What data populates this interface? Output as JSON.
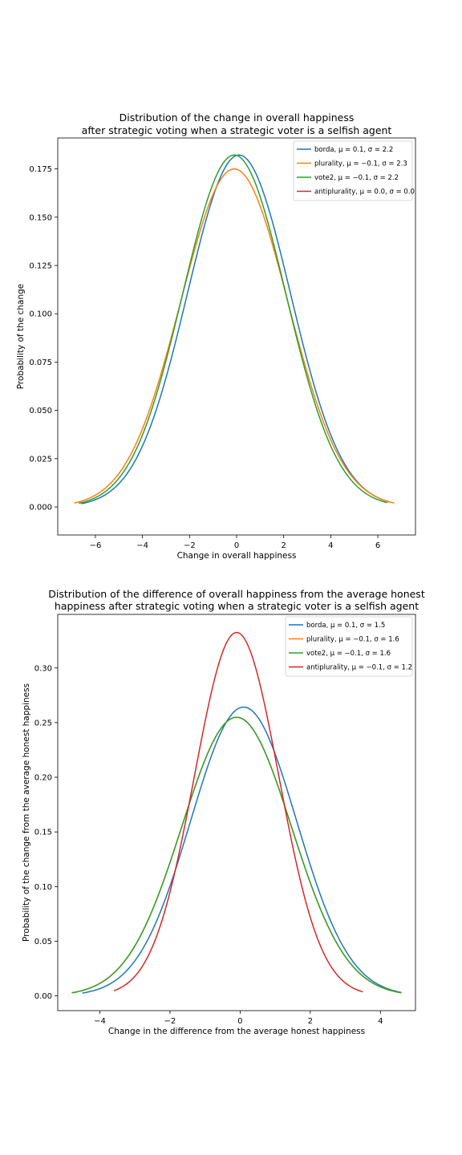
{
  "chart_data": [
    {
      "type": "line",
      "title": "Distribution of the change in overall happiness",
      "subtitle": "after strategic voting when a strategic voter is a selfish agent",
      "xlabel": "Change in overall happiness",
      "ylabel": "Probability of the change",
      "xlim": [
        -7.6,
        7.6
      ],
      "ylim": [
        -0.0145,
        0.191
      ],
      "xticks": [
        -6,
        -4,
        -2,
        0,
        2,
        4,
        6
      ],
      "xtick_labels": [
        "−6",
        "−4",
        "−2",
        "0",
        "2",
        "4",
        "6"
      ],
      "yticks": [
        0,
        0.025,
        0.05,
        0.075,
        0.1,
        0.125,
        0.15,
        0.175
      ],
      "ytick_labels": [
        "0.000",
        "0.025",
        "0.050",
        "0.075",
        "0.100",
        "0.125",
        "0.150",
        "0.175"
      ],
      "grid": false,
      "legend_position": "top-right",
      "series": [
        {
          "name": "borda, μ = 0.1, σ = 2.2",
          "color": "#1f77b4",
          "mu": 0.1,
          "sigma": 2.19,
          "x_range": [
            -6.6,
            6.5
          ]
        },
        {
          "name": "plurality, μ = −0.1, σ = 2.3",
          "color": "#ff7f0e",
          "mu": -0.1,
          "sigma": 2.28,
          "x_range": [
            -6.9,
            6.7
          ]
        },
        {
          "name": "vote2, μ = −0.1, σ = 2.2",
          "color": "#2ca02c",
          "mu": -0.1,
          "sigma": 2.19,
          "x_range": [
            -6.7,
            6.4
          ]
        },
        {
          "name": "antiplurality, μ = 0.0, σ = 0.0",
          "color": "#d62728",
          "mu": 0.0,
          "sigma": 0.0,
          "x_range": null
        }
      ]
    },
    {
      "type": "line",
      "title": "Distribution of the difference of overall happiness from the average honest",
      "subtitle": "happiness after strategic voting when a strategic voter is a selfish agent",
      "xlabel": "Change in the difference from the average honest happiness",
      "ylabel": "Probability of the change from the average honest happiness",
      "xlim": [
        -5.2,
        5.0
      ],
      "ylim": [
        -0.0135,
        0.349
      ],
      "xticks": [
        -4,
        -2,
        0,
        2,
        4
      ],
      "xtick_labels": [
        "−4",
        "−2",
        "0",
        "2",
        "4"
      ],
      "yticks": [
        0,
        0.05,
        0.1,
        0.15,
        0.2,
        0.25,
        0.3
      ],
      "ytick_labels": [
        "0.00",
        "0.05",
        "0.10",
        "0.15",
        "0.20",
        "0.25",
        "0.30"
      ],
      "grid": false,
      "legend_position": "top-right",
      "series": [
        {
          "name": "borda, μ = 0.1, σ = 1.5",
          "color": "#1f77b4",
          "mu": 0.1,
          "sigma": 1.51,
          "x_range": [
            -4.5,
            4.6
          ]
        },
        {
          "name": "plurality, μ = −0.1, σ = 1.6",
          "color": "#ff7f0e",
          "mu": -0.1,
          "sigma": 1.565,
          "x_range": [
            -4.8,
            4.6
          ]
        },
        {
          "name": "vote2, μ = −0.1, σ = 1.6",
          "color": "#2ca02c",
          "mu": -0.1,
          "sigma": 1.565,
          "x_range": [
            -4.8,
            4.6
          ]
        },
        {
          "name": "antiplurality, μ = −0.1, σ = 1.2",
          "color": "#d62728",
          "mu": -0.1,
          "sigma": 1.2,
          "x_range": [
            -3.6,
            3.5
          ]
        }
      ]
    }
  ]
}
